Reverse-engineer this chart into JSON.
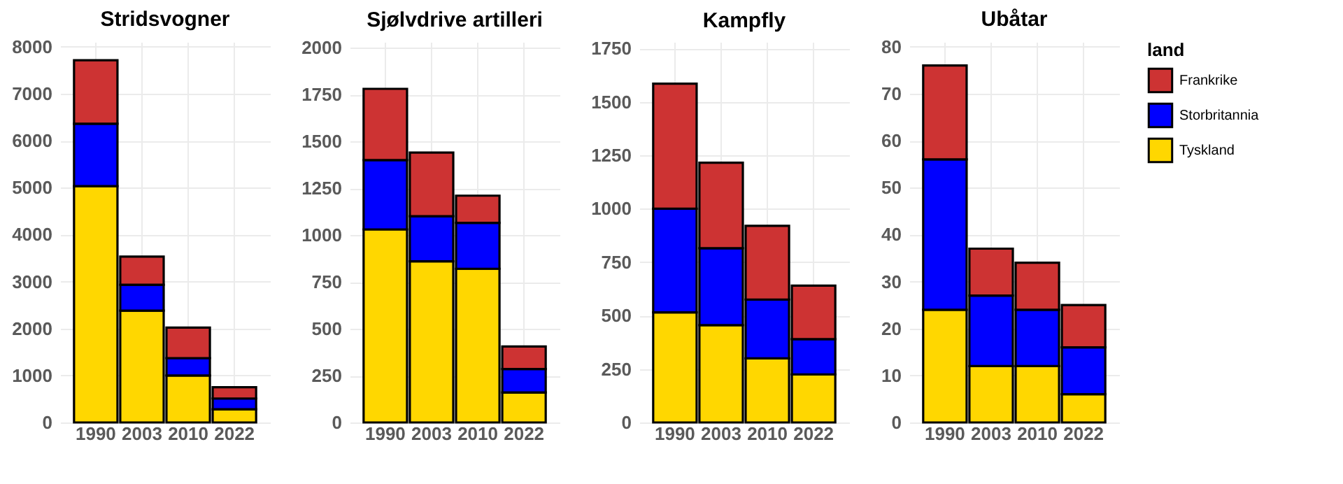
{
  "chart_data": [
    {
      "type": "bar",
      "stacked": true,
      "title": "Stridsvogner",
      "categories": [
        "1990",
        "2003",
        "2010",
        "2022"
      ],
      "ylim": [
        0,
        8100
      ],
      "yticks": [
        0,
        1000,
        2000,
        3000,
        4000,
        5000,
        6000,
        7000,
        8000
      ],
      "grid": true,
      "series": [
        {
          "color": "#ffd700",
          "values": [
            5030,
            2380,
            1000,
            280
          ]
        },
        {
          "color": "#0000ff",
          "values": [
            1330,
            550,
            370,
            230
          ]
        },
        {
          "color": "#cd3333",
          "values": [
            1350,
            600,
            650,
            240
          ]
        }
      ]
    },
    {
      "type": "bar",
      "stacked": true,
      "title": "Sjølvdrive artilleri",
      "categories": [
        "1990",
        "2003",
        "2010",
        "2022"
      ],
      "ylim": [
        0,
        2030
      ],
      "yticks": [
        0,
        250,
        500,
        750,
        1000,
        1250,
        1500,
        1750,
        2000
      ],
      "grid": true,
      "series": [
        {
          "color": "#ffd700",
          "values": [
            1030,
            860,
            820,
            160
          ]
        },
        {
          "color": "#0000ff",
          "values": [
            370,
            240,
            245,
            125
          ]
        },
        {
          "color": "#cd3333",
          "values": [
            380,
            340,
            145,
            120
          ]
        }
      ]
    },
    {
      "type": "bar",
      "stacked": true,
      "title": "Kampfly",
      "categories": [
        "1990",
        "2003",
        "2010",
        "2022"
      ],
      "ylim": [
        0,
        1780
      ],
      "yticks": [
        0,
        250,
        500,
        750,
        1000,
        1250,
        1500,
        1750
      ],
      "grid": true,
      "series": [
        {
          "color": "#ffd700",
          "values": [
            515,
            455,
            300,
            225
          ]
        },
        {
          "color": "#0000ff",
          "values": [
            485,
            360,
            275,
            165
          ]
        },
        {
          "color": "#cd3333",
          "values": [
            585,
            400,
            345,
            250
          ]
        }
      ]
    },
    {
      "type": "bar",
      "stacked": true,
      "title": "Ubåtar",
      "categories": [
        "1990",
        "2003",
        "2010",
        "2022"
      ],
      "ylim": [
        0,
        81
      ],
      "yticks": [
        0,
        10,
        20,
        30,
        40,
        50,
        60,
        70,
        80
      ],
      "grid": true,
      "legend": "right",
      "legend_title": "land",
      "series": [
        {
          "name": "Tyskland",
          "color": "#ffd700",
          "values": [
            24,
            12,
            12,
            6
          ]
        },
        {
          "name": "Storbritannia",
          "color": "#0000ff",
          "values": [
            32,
            15,
            12,
            10
          ]
        },
        {
          "name": "Frankrike",
          "color": "#cd3333",
          "values": [
            20,
            10,
            10,
            9
          ]
        }
      ]
    }
  ]
}
